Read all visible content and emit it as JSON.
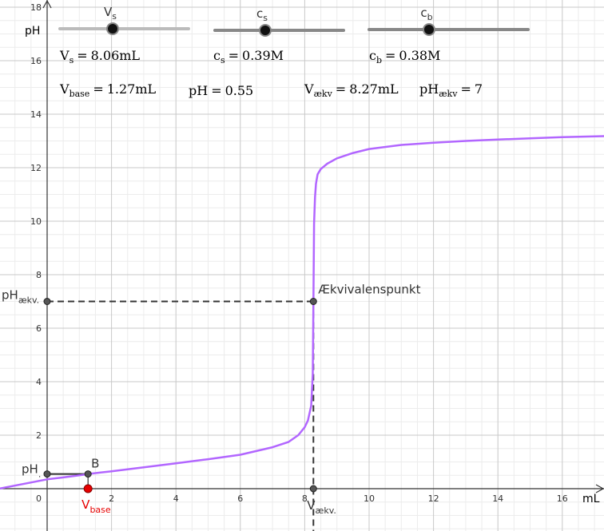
{
  "chart_data": {
    "type": "line",
    "xlabel": "mL",
    "ylabel": "pH",
    "xlim": [
      -1.5,
      17.3
    ],
    "ylim": [
      -1.5,
      18.2
    ],
    "x_ticks": [
      0,
      2,
      4,
      6,
      8,
      10,
      12,
      14,
      16
    ],
    "y_ticks": [
      2,
      4,
      6,
      8,
      10,
      12,
      14,
      16,
      18
    ],
    "grid": true,
    "curve_color": "#b266ff",
    "series": [
      {
        "x": [
          -1.5,
          0,
          0.5,
          1,
          1.27,
          2,
          3,
          4,
          5,
          6,
          7,
          7.5,
          7.8,
          8.0,
          8.1,
          8.2,
          8.25,
          8.27,
          8.29,
          8.32,
          8.35,
          8.4,
          8.5,
          8.7,
          9,
          9.5,
          10,
          11,
          12,
          13,
          14,
          15,
          16,
          17.3
        ],
        "y": [
          0.0,
          0.35,
          0.42,
          0.5,
          0.55,
          0.65,
          0.8,
          0.95,
          1.1,
          1.27,
          1.55,
          1.75,
          2.0,
          2.3,
          2.55,
          3.1,
          4.3,
          7.0,
          9.9,
          10.9,
          11.4,
          11.75,
          11.95,
          12.15,
          12.35,
          12.55,
          12.7,
          12.85,
          12.93,
          13.0,
          13.05,
          13.1,
          13.14,
          13.18
        ]
      }
    ],
    "points": {
      "B": {
        "x": 1.27,
        "y": 0.55,
        "label": "B"
      },
      "V_base": {
        "x": 1.27,
        "y": 0,
        "label": "V",
        "sub": "base",
        "color": "#e60000"
      },
      "pH_start": {
        "x": 0,
        "y": 0.55,
        "label": "pH",
        "sub": "."
      },
      "equivalence": {
        "x": 8.27,
        "y": 7,
        "label": "Ækvivalenspunkt"
      },
      "V_aekv": {
        "x": 8.27,
        "y": 0,
        "label": "V",
        "sub": "ækv."
      },
      "pH_aekv": {
        "x": 0,
        "y": 7,
        "label": "pH",
        "sub": "ækv."
      }
    }
  },
  "sliders": [
    {
      "name": "V",
      "sub": "s",
      "value": 0.55,
      "color": "#bbbbbb"
    },
    {
      "name": "c",
      "sub": "s",
      "value": 0.39,
      "color": "#888888"
    },
    {
      "name": "c",
      "sub": "b",
      "value": 0.38,
      "color": "#888888"
    }
  ],
  "readouts": {
    "vs": {
      "name": "V",
      "sub": "s",
      "eq": "=",
      "value": "8.06mL"
    },
    "cs": {
      "name": "c",
      "sub": "s",
      "eq": "=",
      "value": "0.39M"
    },
    "cb": {
      "name": "c",
      "sub": "b",
      "eq": "=",
      "value": "0.38M"
    },
    "vbase": {
      "name": "V",
      "sub": "base",
      "eq": "=",
      "value": "1.27mL"
    },
    "ph": {
      "name": "pH",
      "eq": "=",
      "value": "0.55"
    },
    "vaekv": {
      "name": "V",
      "sub": "ækv",
      "eq": "=",
      "value": "8.27mL"
    },
    "phaekv": {
      "name": "pH",
      "sub": "ækv",
      "eq": "=",
      "value": "7"
    }
  }
}
